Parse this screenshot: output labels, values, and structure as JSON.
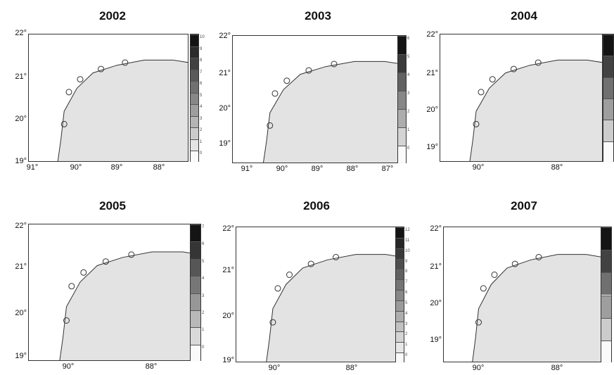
{
  "panels": [
    {
      "title": "2002",
      "yticks": [
        "22°",
        "21°",
        "20°",
        "19°"
      ],
      "xticks": [
        "91°",
        "90°",
        "89°",
        "88°"
      ],
      "colorbar": [
        "10",
        "9",
        "8",
        "7",
        "6",
        "5",
        "4",
        "3",
        "2",
        "1",
        "0"
      ]
    },
    {
      "title": "2003",
      "yticks": [
        "22°",
        "21°",
        "20°",
        "19°"
      ],
      "xticks": [
        "91°",
        "90°",
        "89°",
        "88°",
        "87°"
      ],
      "colorbar": [
        "6",
        "5",
        "4",
        "3",
        "2",
        "1",
        "0"
      ]
    },
    {
      "title": "2004",
      "yticks": [
        "22°",
        "21°",
        "20°",
        "19°"
      ],
      "xticks": [
        "90°",
        "88°"
      ],
      "colorbar": []
    },
    {
      "title": "2005",
      "yticks": [
        "22°",
        "21°",
        "20°",
        "19°"
      ],
      "xticks": [
        "90°",
        "88°"
      ],
      "colorbar": [
        "7",
        "6",
        "5",
        "4",
        "3",
        "2",
        "1",
        "0"
      ]
    },
    {
      "title": "2006",
      "yticks": [
        "22°",
        "21°",
        "20°",
        "19°"
      ],
      "xticks": [
        "90°",
        "88°"
      ],
      "colorbar": [
        "12",
        "11",
        "10",
        "9",
        "8",
        "7",
        "6",
        "5",
        "4",
        "3",
        "2",
        "1",
        "0"
      ]
    },
    {
      "title": "2007",
      "yticks": [
        "22°",
        "21°",
        "20°",
        "19°"
      ],
      "xticks": [
        "90°",
        "88°"
      ],
      "colorbar": []
    }
  ]
}
